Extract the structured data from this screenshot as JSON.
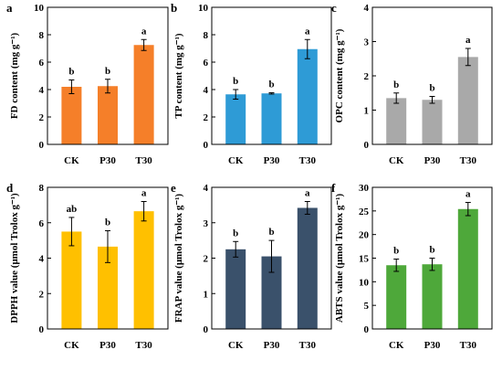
{
  "chart_data": [
    {
      "panel": "a",
      "type": "bar",
      "categories": [
        "CK",
        "P30",
        "T30"
      ],
      "values": [
        4.2,
        4.25,
        7.25
      ],
      "errors": [
        0.5,
        0.5,
        0.4
      ],
      "significance": [
        "b",
        "b",
        "a"
      ],
      "color": "#F57F29",
      "ylabel": "FD content (mg g⁻¹)",
      "ylim": [
        0,
        10
      ],
      "yticks": [
        "0",
        "2",
        "4",
        "6",
        "8",
        "10"
      ]
    },
    {
      "panel": "b",
      "type": "bar",
      "categories": [
        "CK",
        "P30",
        "T30"
      ],
      "values": [
        3.65,
        3.72,
        6.95
      ],
      "errors": [
        0.35,
        0.05,
        0.7
      ],
      "significance": [
        "b",
        "b",
        "a"
      ],
      "color": "#2E9BD6",
      "ylabel": "TP content (mg g⁻¹)",
      "ylim": [
        0,
        10
      ],
      "yticks": [
        "0",
        "2",
        "4",
        "6",
        "8",
        "10"
      ]
    },
    {
      "panel": "c",
      "type": "bar",
      "categories": [
        "CK",
        "P30",
        "T30"
      ],
      "values": [
        1.35,
        1.3,
        2.55
      ],
      "errors": [
        0.15,
        0.1,
        0.25
      ],
      "significance": [
        "b",
        "b",
        "a"
      ],
      "color": "#A9A9A9",
      "ylabel": "OPC content (mg g⁻¹)",
      "ylim": [
        0,
        4
      ],
      "yticks": [
        "0",
        "1",
        "2",
        "3",
        "4"
      ]
    },
    {
      "panel": "d",
      "type": "bar",
      "categories": [
        "CK",
        "P30",
        "T30"
      ],
      "values": [
        5.5,
        4.65,
        6.65
      ],
      "errors": [
        0.8,
        0.9,
        0.55
      ],
      "significance": [
        "ab",
        "b",
        "a"
      ],
      "color": "#FFC000",
      "ylabel": "DPPH value (μmol Trolox g⁻¹)",
      "ylim": [
        0,
        8
      ],
      "yticks": [
        "0",
        "2",
        "4",
        "6",
        "8"
      ]
    },
    {
      "panel": "e",
      "type": "bar",
      "categories": [
        "CK",
        "P30",
        "T30"
      ],
      "values": [
        2.25,
        2.05,
        3.42
      ],
      "errors": [
        0.22,
        0.45,
        0.18
      ],
      "significance": [
        "b",
        "b",
        "a"
      ],
      "color": "#3A516B",
      "ylabel": "FRAP value (μmol Trolox g⁻¹)",
      "ylim": [
        0,
        4
      ],
      "yticks": [
        "0",
        "1",
        "2",
        "3",
        "4"
      ]
    },
    {
      "panel": "f",
      "type": "bar",
      "categories": [
        "CK",
        "P30",
        "T30"
      ],
      "values": [
        13.5,
        13.7,
        25.4
      ],
      "errors": [
        1.3,
        1.3,
        1.4
      ],
      "significance": [
        "b",
        "b",
        "a"
      ],
      "color": "#4EA83A",
      "ylabel": "ABTS value (μmol Trolox g⁻¹)",
      "ylim": [
        0,
        30
      ],
      "yticks": [
        "0",
        "5",
        "10",
        "15",
        "20",
        "25",
        "30"
      ]
    }
  ]
}
